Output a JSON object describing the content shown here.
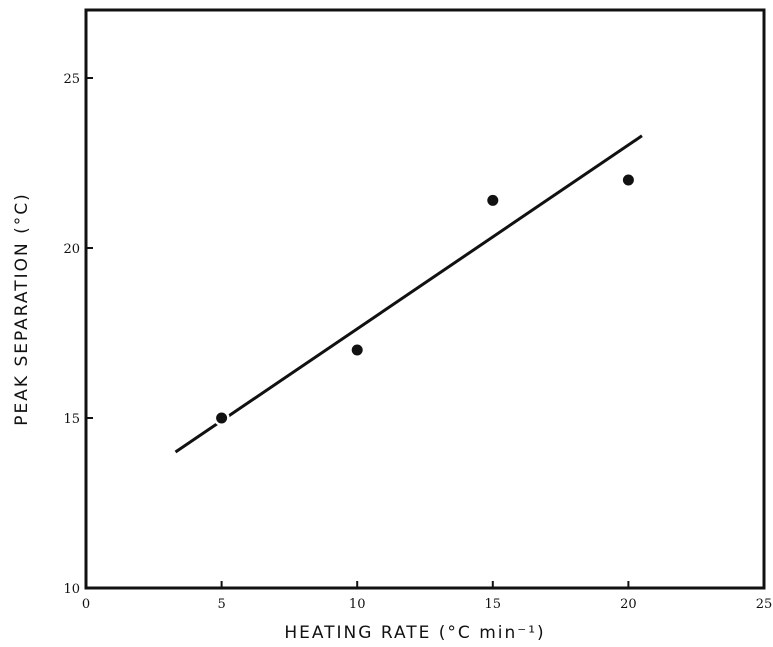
{
  "chart_data": {
    "type": "scatter",
    "title": "",
    "xlabel": "HEATING RATE (°C  min⁻¹)",
    "ylabel": "PEAK SEPARATION (°C)",
    "xlim": [
      0,
      25
    ],
    "ylim": [
      10,
      27
    ],
    "x_ticks": [
      "0",
      "5",
      "10",
      "15",
      "20",
      "25"
    ],
    "y_ticks": [
      "10",
      "15",
      "20",
      "25"
    ],
    "grid": false,
    "series": [
      {
        "type": "scatter",
        "x": [
          5,
          10,
          15,
          20
        ],
        "y": [
          15.0,
          17.0,
          21.4,
          22.0
        ]
      }
    ],
    "fit_line": {
      "x": [
        3.3,
        20.5
      ],
      "y": [
        14.0,
        23.3
      ]
    },
    "colors": {
      "ink": "#111111"
    }
  }
}
